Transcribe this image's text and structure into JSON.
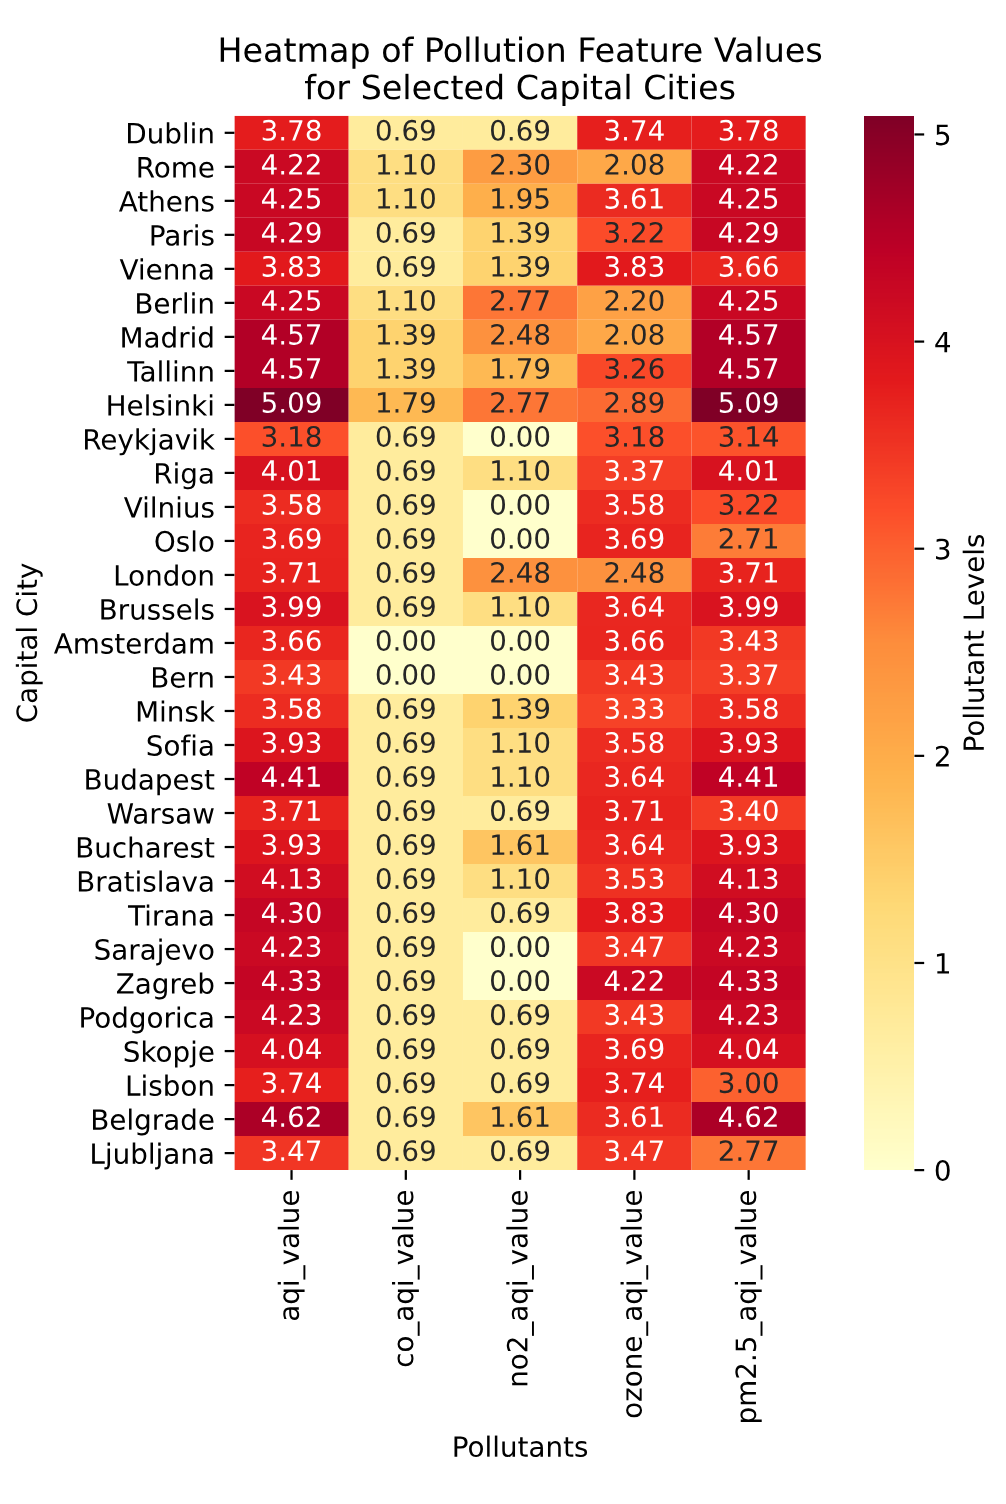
{
  "chart_data": {
    "type": "heatmap",
    "title": "Heatmap of Pollution Feature Values\nfor Selected Capital Cities",
    "xlabel": "Pollutants",
    "ylabel": "Capital City",
    "clabel": "Pollutant Levels",
    "categories": [
      "aqi_value",
      "co_aqi_value",
      "no2_aqi_value",
      "ozone_aqi_value",
      "pm2.5_aqi_value"
    ],
    "y_categories": [
      "Dublin",
      "Rome",
      "Athens",
      "Paris",
      "Vienna",
      "Berlin",
      "Madrid",
      "Tallinn",
      "Helsinki",
      "Reykjavik",
      "Riga",
      "Vilnius",
      "Oslo",
      "London",
      "Brussels",
      "Amsterdam",
      "Bern",
      "Minsk",
      "Sofia",
      "Budapest",
      "Warsaw",
      "Bucharest",
      "Bratislava",
      "Tirana",
      "Sarajevo",
      "Zagreb",
      "Podgorica",
      "Skopje",
      "Lisbon",
      "Belgrade",
      "Ljubljana"
    ],
    "cells": [
      [
        3.78,
        0.69,
        0.69,
        3.74,
        3.78
      ],
      [
        4.22,
        1.1,
        2.3,
        2.08,
        4.22
      ],
      [
        4.25,
        1.1,
        1.95,
        3.61,
        4.25
      ],
      [
        4.29,
        0.69,
        1.39,
        3.22,
        4.29
      ],
      [
        3.83,
        0.69,
        1.39,
        3.83,
        3.66
      ],
      [
        4.25,
        1.1,
        2.77,
        2.2,
        4.25
      ],
      [
        4.57,
        1.39,
        2.48,
        2.08,
        4.57
      ],
      [
        4.57,
        1.39,
        1.79,
        3.26,
        4.57
      ],
      [
        5.09,
        1.79,
        2.77,
        2.89,
        5.09
      ],
      [
        3.18,
        0.69,
        0.0,
        3.18,
        3.14
      ],
      [
        4.01,
        0.69,
        1.1,
        3.37,
        4.01
      ],
      [
        3.58,
        0.69,
        0.0,
        3.58,
        3.22
      ],
      [
        3.69,
        0.69,
        0.0,
        3.69,
        2.71
      ],
      [
        3.71,
        0.69,
        2.48,
        2.48,
        3.71
      ],
      [
        3.99,
        0.69,
        1.1,
        3.64,
        3.99
      ],
      [
        3.66,
        0.0,
        0.0,
        3.66,
        3.43
      ],
      [
        3.43,
        0.0,
        0.0,
        3.43,
        3.37
      ],
      [
        3.58,
        0.69,
        1.39,
        3.33,
        3.58
      ],
      [
        3.93,
        0.69,
        1.1,
        3.58,
        3.93
      ],
      [
        4.41,
        0.69,
        1.1,
        3.64,
        4.41
      ],
      [
        3.71,
        0.69,
        0.69,
        3.71,
        3.4
      ],
      [
        3.93,
        0.69,
        1.61,
        3.64,
        3.93
      ],
      [
        4.13,
        0.69,
        1.1,
        3.53,
        4.13
      ],
      [
        4.3,
        0.69,
        0.69,
        3.83,
        4.3
      ],
      [
        4.23,
        0.69,
        0.0,
        3.47,
        4.23
      ],
      [
        4.33,
        0.69,
        0.0,
        4.22,
        4.33
      ],
      [
        4.23,
        0.69,
        0.69,
        3.43,
        4.23
      ],
      [
        4.04,
        0.69,
        0.69,
        3.69,
        4.04
      ],
      [
        3.74,
        0.69,
        0.69,
        3.74,
        3.0
      ],
      [
        4.62,
        0.69,
        1.61,
        3.61,
        4.62
      ],
      [
        3.47,
        0.69,
        0.69,
        3.47,
        2.77
      ]
    ],
    "cell_labels": [
      [
        "3.78",
        "0.69",
        "0.69",
        "3.74",
        "3.78"
      ],
      [
        "4.22",
        "1.10",
        "2.30",
        "2.08",
        "4.22"
      ],
      [
        "4.25",
        "1.10",
        "1.95",
        "3.61",
        "4.25"
      ],
      [
        "4.29",
        "0.69",
        "1.39",
        "3.22",
        "4.29"
      ],
      [
        "3.83",
        "0.69",
        "1.39",
        "3.83",
        "3.66"
      ],
      [
        "4.25",
        "1.10",
        "2.77",
        "2.20",
        "4.25"
      ],
      [
        "4.57",
        "1.39",
        "2.48",
        "2.08",
        "4.57"
      ],
      [
        "4.57",
        "1.39",
        "1.79",
        "3.26",
        "4.57"
      ],
      [
        "5.09",
        "1.79",
        "2.77",
        "2.89",
        "5.09"
      ],
      [
        "3.18",
        "0.69",
        "0.00",
        "3.18",
        "3.14"
      ],
      [
        "4.01",
        "0.69",
        "1.10",
        "3.37",
        "4.01"
      ],
      [
        "3.58",
        "0.69",
        "0.00",
        "3.58",
        "3.22"
      ],
      [
        "3.69",
        "0.69",
        "0.00",
        "3.69",
        "2.71"
      ],
      [
        "3.71",
        "0.69",
        "2.48",
        "2.48",
        "3.71"
      ],
      [
        "3.99",
        "0.69",
        "1.10",
        "3.64",
        "3.99"
      ],
      [
        "3.66",
        "0.00",
        "0.00",
        "3.66",
        "3.43"
      ],
      [
        "3.43",
        "0.00",
        "0.00",
        "3.43",
        "3.37"
      ],
      [
        "3.58",
        "0.69",
        "1.39",
        "3.33",
        "3.58"
      ],
      [
        "3.93",
        "0.69",
        "1.10",
        "3.58",
        "3.93"
      ],
      [
        "4.41",
        "0.69",
        "1.10",
        "3.64",
        "4.41"
      ],
      [
        "3.71",
        "0.69",
        "0.69",
        "3.71",
        "3.40"
      ],
      [
        "3.93",
        "0.69",
        "1.61",
        "3.64",
        "3.93"
      ],
      [
        "4.13",
        "0.69",
        "1.10",
        "3.53",
        "4.13"
      ],
      [
        "4.30",
        "0.69",
        "0.69",
        "3.83",
        "4.30"
      ],
      [
        "4.23",
        "0.69",
        "0.00",
        "3.47",
        "4.23"
      ],
      [
        "4.33",
        "0.69",
        "0.00",
        "4.22",
        "4.33"
      ],
      [
        "4.23",
        "0.69",
        "0.69",
        "3.43",
        "4.23"
      ],
      [
        "4.04",
        "0.69",
        "0.69",
        "3.69",
        "4.04"
      ],
      [
        "3.74",
        "0.69",
        "0.69",
        "3.74",
        "3.00"
      ],
      [
        "4.62",
        "0.69",
        "1.61",
        "3.61",
        "4.62"
      ],
      [
        "3.47",
        "0.69",
        "0.69",
        "3.47",
        "2.77"
      ]
    ],
    "clim": [
      0,
      5.09
    ],
    "cticks": [
      0,
      1,
      2,
      3,
      4,
      5
    ]
  }
}
